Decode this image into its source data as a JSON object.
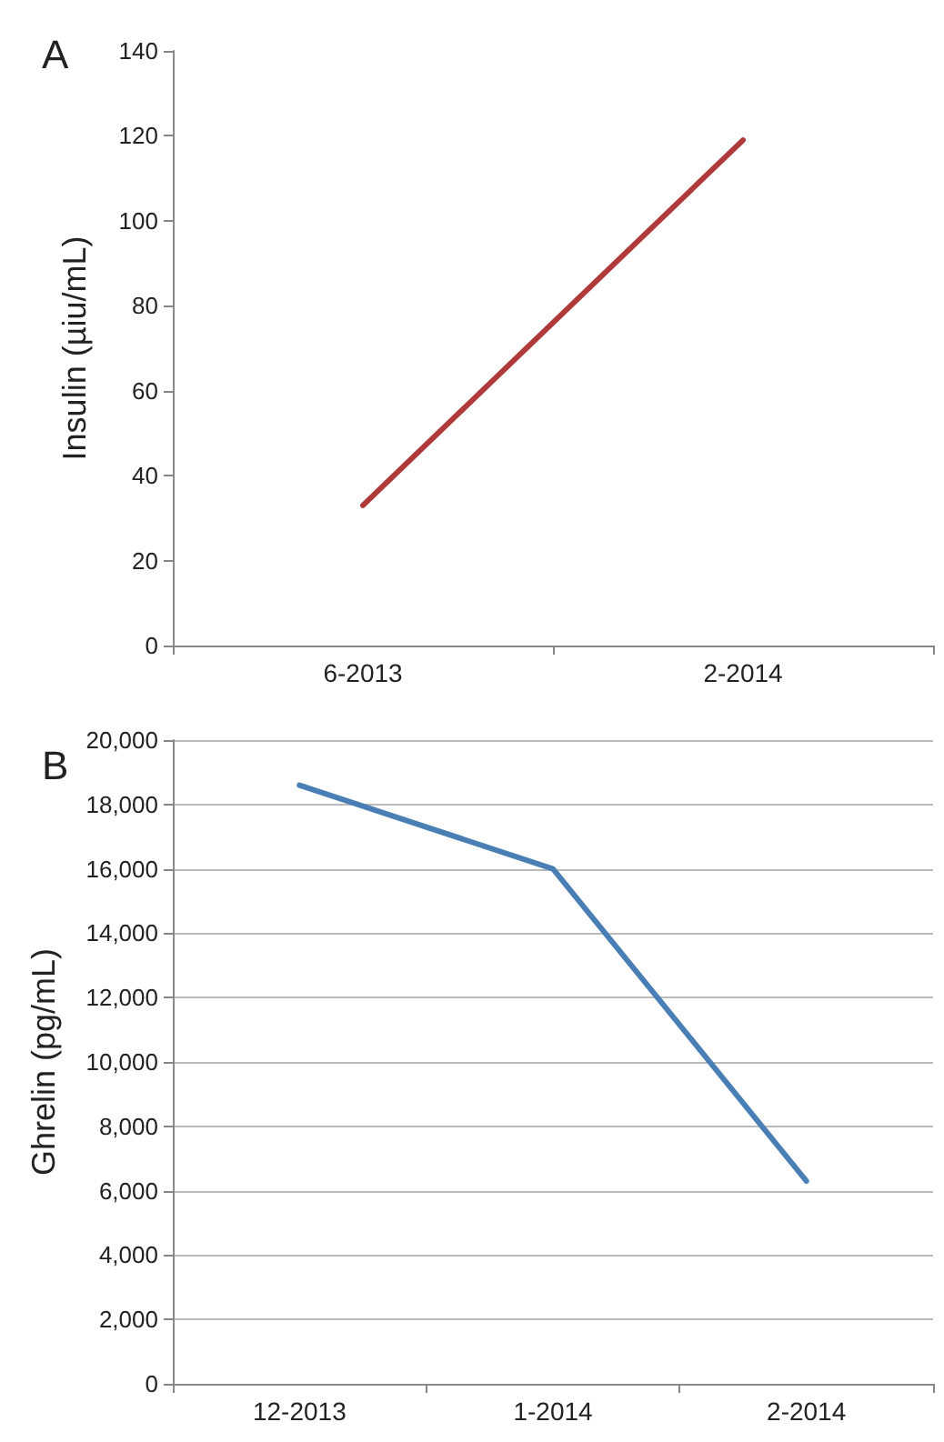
{
  "chart_data": [
    {
      "type": "line",
      "title": "A",
      "ylabel": "Insulin (µiu/mL)",
      "categories": [
        "6-2013",
        "2-2014"
      ],
      "series": [
        {
          "color": "#b03a3a",
          "values": [
            33,
            119
          ]
        }
      ],
      "ylim": [
        0,
        140
      ],
      "yticks": [
        0,
        20,
        40,
        60,
        80,
        100,
        120,
        140
      ],
      "grid": false,
      "marker": "none"
    },
    {
      "type": "line",
      "title": "B",
      "ylabel": "Ghrelin (pg/mL)",
      "categories": [
        "12-2013",
        "1-2014",
        "2-2014"
      ],
      "series": [
        {
          "color": "#4a7fb5",
          "values": [
            18600,
            16000,
            6300
          ]
        }
      ],
      "ylim": [
        0,
        20000
      ],
      "yticks": [
        {
          "value": 0,
          "label": "0"
        },
        {
          "value": 2000,
          "label": "2,000"
        },
        {
          "value": 4000,
          "label": "4,000"
        },
        {
          "value": 6000,
          "label": "6,000"
        },
        {
          "value": 8000,
          "label": "8,000"
        },
        {
          "value": 10000,
          "label": "10,000"
        },
        {
          "value": 12000,
          "label": "12,000"
        },
        {
          "value": 14000,
          "label": "14,000"
        },
        {
          "value": 16000,
          "label": "16,000"
        },
        {
          "value": 18000,
          "label": "18,000"
        },
        {
          "value": 20000,
          "label": "20,000"
        }
      ],
      "grid": "y",
      "marker": "none"
    }
  ]
}
